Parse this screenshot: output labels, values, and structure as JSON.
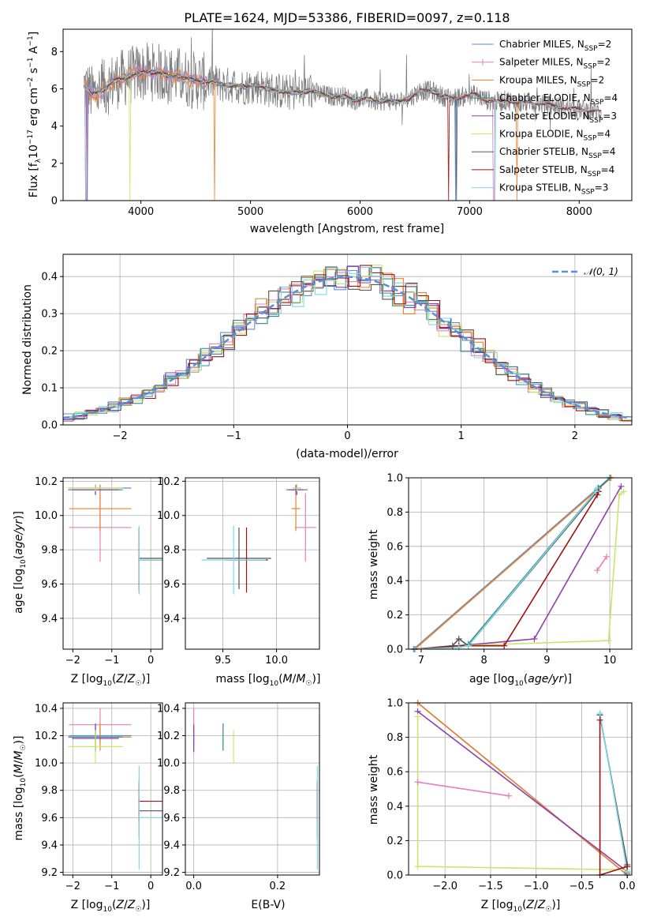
{
  "figure": {
    "title": "PLATE=1624, MJD=53386, FIBERID=0097, z=0.118"
  },
  "colors": {
    "Chabrier MILES": "#5b8fd6",
    "Salpeter MILES": "#e77fb8",
    "Kroupa MILES": "#e8822c",
    "Chabrier ELODIE": "#2f8a8a",
    "Salpeter ELODIE": "#8e3fad",
    "Kroupa ELODIE": "#c9e66a",
    "Chabrier STELIB": "#555555",
    "Salpeter STELIB": "#a01010",
    "Kroupa STELIB": "#7fd8e6",
    "data": "#7f7f7f",
    "gauss": "#5b8fd6"
  },
  "chart_data": [
    {
      "id": "spectrum",
      "type": "line",
      "title": "PLATE=1624, MJD=53386, FIBERID=0097, z=0.118",
      "xlabel": "wavelength [Angstrom, rest frame]",
      "ylabel": "Flux [f_λ 10^-17 erg cm^-2 s^-1 A^-1]",
      "xlim": [
        3290,
        8480
      ],
      "ylim": [
        0,
        9.2
      ],
      "xticks": [
        4000,
        5000,
        6000,
        7000,
        8000
      ],
      "yticks": [
        0,
        2,
        4,
        6,
        8
      ],
      "continuum": {
        "x": [
          3480,
          3550,
          3650,
          3750,
          3850,
          3950,
          4050,
          4150,
          4250,
          4350,
          4450,
          4550,
          4650,
          4750,
          4850,
          4950,
          5050,
          5150,
          5250,
          5350,
          5450,
          5550,
          5650,
          5750,
          5850,
          5950,
          6050,
          6150,
          6250,
          6350,
          6450,
          6550,
          6650,
          6750,
          6850,
          6950,
          7050,
          7150,
          7250,
          7350,
          7450,
          7550,
          7650,
          7750,
          7850,
          7950,
          8050,
          8150,
          8200
        ],
        "y": [
          6.2,
          5.7,
          5.9,
          6.4,
          6.6,
          6.8,
          6.9,
          6.9,
          6.7,
          6.7,
          6.5,
          6.4,
          6.4,
          6.2,
          6.2,
          6.1,
          6.2,
          6.0,
          5.9,
          5.8,
          5.8,
          5.9,
          5.7,
          5.6,
          5.6,
          5.4,
          5.5,
          5.3,
          5.4,
          5.3,
          5.5,
          5.9,
          5.9,
          5.6,
          5.5,
          5.6,
          5.7,
          5.4,
          5.3,
          5.4,
          5.2,
          5.3,
          5.2,
          5.1,
          5.0,
          4.9,
          4.9,
          4.8,
          4.75
        ]
      },
      "series": [
        {
          "name": "Chabrier MILES, N_SSP=2"
        },
        {
          "name": "Salpeter MILES, N_SSP=2"
        },
        {
          "name": "Kroupa MILES, N_SSP=2"
        },
        {
          "name": "Chabrier ELODIE, N_SSP=4"
        },
        {
          "name": "Salpeter ELODIE, N_SSP=3"
        },
        {
          "name": "Kroupa ELODIE, N_SSP=4"
        },
        {
          "name": "Chabrier STELIB, N_SSP=4"
        },
        {
          "name": "Salpeter STELIB, N_SSP=4"
        },
        {
          "name": "Kroupa STELIB, N_SSP=3"
        }
      ],
      "legend": "top-right",
      "grid": false
    },
    {
      "id": "residuals",
      "type": "line",
      "xlabel": "(data-model)/error",
      "ylabel": "Normed distribution",
      "xlim": [
        -2.5,
        2.5
      ],
      "ylim": [
        0,
        0.46
      ],
      "xticks": [
        -2,
        -1,
        0,
        1,
        2
      ],
      "yticks": [
        0.0,
        0.1,
        0.2,
        0.3,
        0.4
      ],
      "bin_width": 0.1,
      "gauss_label": "𝒩(0, 1)",
      "legend": "top-right",
      "grid": true
    },
    {
      "id": "age_vs_Z",
      "type": "scatter",
      "xlabel": "Z [log10(Z/Z☉)]",
      "ylabel": "age [log10(age/yr)]",
      "xlim": [
        -2.25,
        0.3
      ],
      "ylim": [
        9.22,
        10.22
      ],
      "xticks": [
        -2,
        -1,
        0
      ],
      "yticks": [
        9.4,
        9.6,
        9.8,
        10.0,
        10.2
      ],
      "points": [
        {
          "s": "Chabrier MILES",
          "x": -1.3,
          "xe": [
            0.8,
            0.8
          ],
          "y": 10.16,
          "ye": [
            0.02,
            0.02
          ]
        },
        {
          "s": "Salpeter MILES",
          "x": -1.3,
          "xe": [
            0.8,
            0.8
          ],
          "y": 9.93,
          "ye": [
            0.2,
            0.2
          ]
        },
        {
          "s": "Kroupa MILES",
          "x": -1.3,
          "xe": [
            0.8,
            0.8
          ],
          "y": 10.04,
          "ye": [
            0.13,
            0.13
          ]
        },
        {
          "s": "Chabrier ELODIE",
          "x": -1.42,
          "xe": [
            0.7,
            0.7
          ],
          "y": 10.15,
          "ye": [
            0.03,
            0.03
          ]
        },
        {
          "s": "Salpeter ELODIE",
          "x": -1.42,
          "xe": [
            0.6,
            0.6
          ],
          "y": 10.15,
          "ye": [
            0.03,
            0.03
          ]
        },
        {
          "s": "Kroupa ELODIE",
          "x": -1.42,
          "xe": [
            0.7,
            0.7
          ],
          "y": 10.16,
          "ye": [
            0.02,
            0.02
          ]
        },
        {
          "s": "Chabrier STELIB",
          "x": -0.3,
          "xe": [
            0.02,
            0.6
          ],
          "y": 9.75,
          "ye": [
            0.18,
            0.18
          ]
        },
        {
          "s": "Salpeter STELIB",
          "x": -0.3,
          "xe": [
            0.02,
            0.6
          ],
          "y": 9.74,
          "ye": [
            0.19,
            0.19
          ]
        },
        {
          "s": "Kroupa STELIB",
          "x": -0.3,
          "xe": [
            0.02,
            0.6
          ],
          "y": 9.74,
          "ye": [
            0.2,
            0.2
          ]
        }
      ],
      "grid": true
    },
    {
      "id": "age_vs_mass",
      "type": "scatter",
      "xlabel": "mass [log10(M/M☉)]",
      "ylabel": "",
      "xlim": [
        9.15,
        10.4
      ],
      "ylim": [
        9.22,
        10.22
      ],
      "xticks": [
        9.5,
        10.0
      ],
      "yticks": [
        9.4,
        9.6,
        9.8,
        10.0,
        10.2
      ],
      "points": [
        {
          "s": "Chabrier MILES",
          "x": 10.19,
          "xe": [
            0.04,
            0.04
          ],
          "y": 10.16,
          "ye": [
            0.02,
            0.02
          ]
        },
        {
          "s": "Salpeter MILES",
          "x": 10.27,
          "xe": [
            0.1,
            0.1
          ],
          "y": 9.93,
          "ye": [
            0.2,
            0.2
          ]
        },
        {
          "s": "Kroupa MILES",
          "x": 10.18,
          "xe": [
            0.04,
            0.04
          ],
          "y": 10.04,
          "ye": [
            0.13,
            0.13
          ]
        },
        {
          "s": "Chabrier ELODIE",
          "x": 10.19,
          "xe": [
            0.1,
            0.1
          ],
          "y": 10.15,
          "ye": [
            0.03,
            0.03
          ]
        },
        {
          "s": "Salpeter ELODIE",
          "x": 10.18,
          "xe": [
            0.07,
            0.07
          ],
          "y": 10.15,
          "ye": [
            0.03,
            0.03
          ]
        },
        {
          "s": "Kroupa ELODIE",
          "x": 10.19,
          "xe": [
            0.04,
            0.04
          ],
          "y": 10.16,
          "ye": [
            0.02,
            0.02
          ]
        },
        {
          "s": "Chabrier STELIB",
          "x": 9.65,
          "xe": [
            0.3,
            0.3
          ],
          "y": 9.75,
          "ye": [
            0.18,
            0.18
          ]
        },
        {
          "s": "Salpeter STELIB",
          "x": 9.72,
          "xe": [
            0.2,
            0.2
          ],
          "y": 9.74,
          "ye": [
            0.19,
            0.19
          ]
        },
        {
          "s": "Kroupa STELIB",
          "x": 9.6,
          "xe": [
            0.3,
            0.3
          ],
          "y": 9.74,
          "ye": [
            0.2,
            0.2
          ]
        }
      ],
      "grid": true
    },
    {
      "id": "mass_weight_vs_age",
      "type": "line",
      "xlabel": "age [log10(age/yr)]",
      "ylabel": "mass weight",
      "xlim": [
        6.8,
        10.35
      ],
      "ylim": [
        0,
        1.0
      ],
      "xticks": [
        7,
        8,
        9,
        10
      ],
      "yticks": [
        0.0,
        0.2,
        0.4,
        0.6,
        0.8,
        1.0
      ],
      "series": [
        {
          "s": "Chabrier MILES",
          "x": [
            6.88,
            10.0
          ],
          "y": [
            0.0,
            1.0
          ]
        },
        {
          "s": "Kroupa MILES",
          "x": [
            6.9,
            10.02
          ],
          "y": [
            0.0,
            1.0
          ]
        },
        {
          "s": "Salpeter MILES",
          "x": [
            9.8,
            9.95
          ],
          "y": [
            0.46,
            0.54
          ]
        },
        {
          "s": "Chabrier ELODIE",
          "x": [
            6.9,
            7.6,
            7.75,
            9.8,
            10.0
          ],
          "y": [
            0.0,
            0.02,
            0.03,
            0.93,
            1.0
          ]
        },
        {
          "s": "Salpeter ELODIE",
          "x": [
            6.9,
            7.6,
            8.8,
            10.18
          ],
          "y": [
            0.0,
            0.02,
            0.06,
            0.95
          ]
        },
        {
          "s": "Kroupa ELODIE",
          "x": [
            6.9,
            7.6,
            9.98,
            10.15,
            10.22
          ],
          "y": [
            0.0,
            0.02,
            0.05,
            0.9,
            0.92
          ]
        },
        {
          "s": "Chabrier STELIB",
          "x": [
            6.9,
            7.5,
            7.6,
            7.75,
            9.8,
            9.82
          ],
          "y": [
            0.0,
            0.02,
            0.06,
            0.02,
            0.92,
            0.94
          ]
        },
        {
          "s": "Salpeter STELIB",
          "x": [
            6.9,
            7.6,
            8.32,
            9.8,
            9.82
          ],
          "y": [
            0.0,
            0.02,
            0.02,
            0.9,
            0.92
          ]
        },
        {
          "s": "Kroupa STELIB",
          "x": [
            6.9,
            7.6,
            7.75,
            9.78,
            9.8
          ],
          "y": [
            0.0,
            0.01,
            0.02,
            0.92,
            0.94
          ]
        }
      ],
      "grid": true
    },
    {
      "id": "mass_vs_Z",
      "type": "scatter",
      "xlabel": "Z [log10(Z/Z☉)]",
      "ylabel": "mass [log10(M/M☉)]",
      "xlim": [
        -2.25,
        0.3
      ],
      "ylim": [
        9.18,
        10.44
      ],
      "xticks": [
        -2,
        -1,
        0
      ],
      "yticks": [
        9.2,
        9.4,
        9.6,
        9.8,
        10.0,
        10.2,
        10.4
      ],
      "points": [
        {
          "s": "Chabrier MILES",
          "x": -1.3,
          "xe": [
            0.8,
            0.8
          ],
          "y": 10.2,
          "ye": [
            0.06,
            0.06
          ]
        },
        {
          "s": "Salpeter MILES",
          "x": -1.3,
          "xe": [
            0.8,
            0.8
          ],
          "y": 10.28,
          "ye": [
            0.12,
            0.12
          ]
        },
        {
          "s": "Kroupa MILES",
          "x": -1.3,
          "xe": [
            0.8,
            0.8
          ],
          "y": 10.19,
          "ye": [
            0.1,
            0.1
          ]
        },
        {
          "s": "Chabrier ELODIE",
          "x": -1.42,
          "xe": [
            0.7,
            0.7
          ],
          "y": 10.19,
          "ye": [
            0.1,
            0.1
          ]
        },
        {
          "s": "Salpeter ELODIE",
          "x": -1.42,
          "xe": [
            0.6,
            0.6
          ],
          "y": 10.18,
          "ye": [
            0.1,
            0.1
          ]
        },
        {
          "s": "Kroupa ELODIE",
          "x": -1.42,
          "xe": [
            0.7,
            0.7
          ],
          "y": 10.12,
          "ye": [
            0.12,
            0.12
          ]
        },
        {
          "s": "Chabrier STELIB",
          "x": -0.3,
          "xe": [
            0.02,
            0.6
          ],
          "y": 9.65,
          "ye": [
            0.2,
            0.2
          ]
        },
        {
          "s": "Salpeter STELIB",
          "x": -0.3,
          "xe": [
            0.02,
            0.6
          ],
          "y": 9.72,
          "ye": [
            0.15,
            0.15
          ]
        },
        {
          "s": "Kroupa STELIB",
          "x": -0.3,
          "xe": [
            0.02,
            0.6
          ],
          "y": 9.6,
          "ye": [
            0.38,
            0.38
          ]
        }
      ],
      "grid": true
    },
    {
      "id": "mass_vs_ebv",
      "type": "scatter",
      "xlabel": "E(B-V)",
      "ylabel": "",
      "xlim": [
        -0.02,
        0.3
      ],
      "ylim": [
        9.18,
        10.44
      ],
      "xticks": [
        0.0,
        0.2
      ],
      "yticks": [
        9.2,
        9.4,
        9.6,
        9.8,
        10.0,
        10.2,
        10.4
      ],
      "points": [
        {
          "s": "Chabrier MILES",
          "x": 0.0,
          "y": 10.2,
          "ye": [
            0.06,
            0.06
          ]
        },
        {
          "s": "Salpeter MILES",
          "x": 0.0,
          "y": 10.28,
          "ye": [
            0.12,
            0.12
          ]
        },
        {
          "s": "Kroupa MILES",
          "x": 0.0,
          "y": 10.19,
          "ye": [
            0.1,
            0.1
          ]
        },
        {
          "s": "Chabrier ELODIE",
          "x": 0.07,
          "y": 10.19,
          "ye": [
            0.1,
            0.1
          ]
        },
        {
          "s": "Salpeter ELODIE",
          "x": 0.0,
          "y": 10.18,
          "ye": [
            0.1,
            0.1
          ]
        },
        {
          "s": "Kroupa ELODIE",
          "x": 0.095,
          "y": 10.12,
          "ye": [
            0.12,
            0.12
          ]
        },
        {
          "s": "Chabrier STELIB",
          "x": 0.295,
          "y": 9.65,
          "ye": [
            0.2,
            0.2
          ]
        },
        {
          "s": "Salpeter STELIB",
          "x": 0.295,
          "y": 9.72,
          "ye": [
            0.15,
            0.15
          ]
        },
        {
          "s": "Kroupa STELIB",
          "x": 0.295,
          "y": 9.6,
          "ye": [
            0.38,
            0.38
          ]
        }
      ],
      "grid": true
    },
    {
      "id": "mass_weight_vs_Z",
      "type": "line",
      "xlabel": "Z [log10(Z/Z☉)]",
      "ylabel": "mass weight",
      "xlim": [
        -2.4,
        0.05
      ],
      "ylim": [
        0,
        1.0
      ],
      "xticks": [
        -2.0,
        -1.5,
        -1.0,
        -0.5,
        0.0
      ],
      "yticks": [
        0.0,
        0.2,
        0.4,
        0.6,
        0.8,
        1.0
      ],
      "series": [
        {
          "s": "Chabrier MILES",
          "x": [
            -2.3,
            0.0
          ],
          "y": [
            1.0,
            0.0
          ]
        },
        {
          "s": "Kroupa MILES",
          "x": [
            -2.3,
            0.0
          ],
          "y": [
            1.0,
            0.0
          ]
        },
        {
          "s": "Salpeter MILES",
          "x": [
            -2.3,
            -1.3
          ],
          "y": [
            0.54,
            0.46
          ]
        },
        {
          "s": "Salpeter ELODIE",
          "x": [
            -2.3,
            0.0
          ],
          "y": [
            0.95,
            0.02
          ]
        },
        {
          "s": "Kroupa ELODIE",
          "x": [
            -2.3,
            -2.3,
            0.0,
            0.0
          ],
          "y": [
            0.92,
            0.05,
            0.03,
            0.02
          ]
        },
        {
          "s": "Chabrier ELODIE",
          "x": [
            -0.3,
            0.0,
            0.0
          ],
          "y": [
            0.93,
            0.05,
            0.02
          ]
        },
        {
          "s": "Chabrier STELIB",
          "x": [
            -0.3,
            0.0,
            0.0
          ],
          "y": [
            0.93,
            0.06,
            0.01
          ]
        },
        {
          "s": "Kroupa STELIB",
          "x": [
            -0.3,
            0.0
          ],
          "y": [
            0.94,
            0.02
          ]
        },
        {
          "s": "Salpeter STELIB",
          "x": [
            -0.3,
            -0.3,
            0.0
          ],
          "y": [
            0.9,
            0.0,
            0.05
          ]
        }
      ],
      "grid": true
    }
  ]
}
